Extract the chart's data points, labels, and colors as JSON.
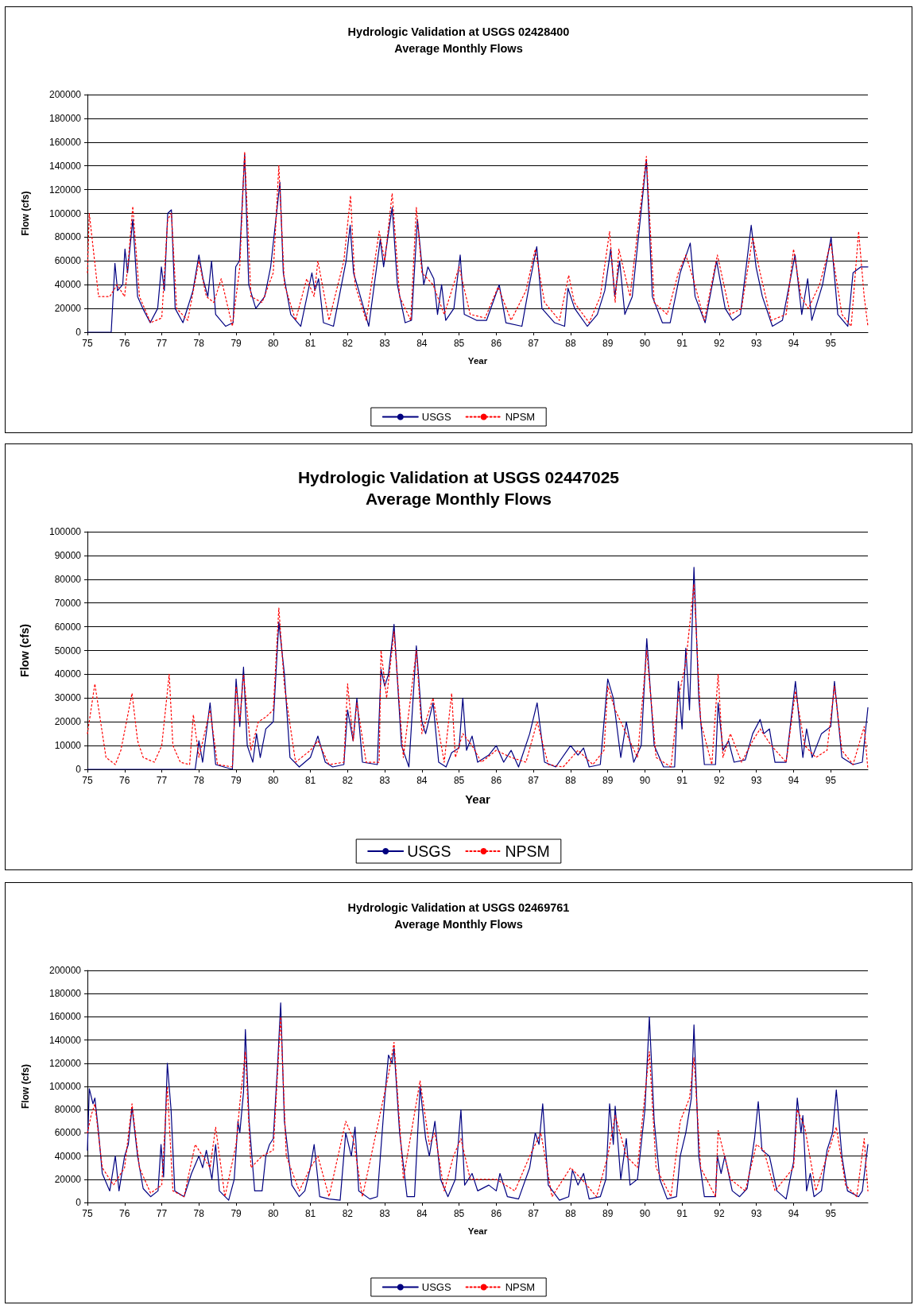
{
  "chart_data": [
    {
      "type": "line",
      "title": "Hydrologic Validation at USGS 02428400",
      "subtitle": "Average Monthly Flows",
      "xlabel": "Year",
      "ylabel": "Flow (cfs)",
      "xlim": [
        75,
        96
      ],
      "xticks": [
        75,
        76,
        77,
        78,
        79,
        80,
        81,
        82,
        83,
        84,
        85,
        86,
        87,
        88,
        89,
        90,
        91,
        92,
        93,
        94,
        95
      ],
      "ylim": [
        0,
        200000
      ],
      "yticks": [
        0,
        20000,
        40000,
        60000,
        80000,
        100000,
        120000,
        140000,
        160000,
        180000,
        200000
      ],
      "grid": "y",
      "legend": "bottom",
      "marker": "none",
      "series": [
        {
          "name": "USGS",
          "color": "#000080",
          "line_style": "solid",
          "x": [
            75,
            75.64,
            75.74,
            75.81,
            75.95,
            76.01,
            76.08,
            76.22,
            76.35,
            76.49,
            76.69,
            76.89,
            76.99,
            77.07,
            77.16,
            77.26,
            77.36,
            77.57,
            77.84,
            78.0,
            78.11,
            78.24,
            78.34,
            78.45,
            78.72,
            78.92,
            78.99,
            79.09,
            79.23,
            79.34,
            79.53,
            79.77,
            79.93,
            80.18,
            80.27,
            80.47,
            80.74,
            81.04,
            81.12,
            81.22,
            81.35,
            81.62,
            81.96,
            82.07,
            82.16,
            82.3,
            82.57,
            82.88,
            82.97,
            83.06,
            83.2,
            83.34,
            83.55,
            83.72,
            83.88,
            84.05,
            84.16,
            84.32,
            84.42,
            84.53,
            84.64,
            84.86,
            85.03,
            85.14,
            85.47,
            85.74,
            86.08,
            86.26,
            86.69,
            86.89,
            87.09,
            87.23,
            87.57,
            87.84,
            87.93,
            88.11,
            88.45,
            88.72,
            88.92,
            89.08,
            89.19,
            89.32,
            89.46,
            89.66,
            90.04,
            90.2,
            90.47,
            90.68,
            90.95,
            91.22,
            91.35,
            91.62,
            91.93,
            92.16,
            92.36,
            92.57,
            92.86,
            92.99,
            93.16,
            93.43,
            93.7,
            94.04,
            94.22,
            94.38,
            94.49,
            94.78,
            95.01,
            95.19,
            95.46,
            95.6,
            95.81,
            96
          ],
          "values": [
            0,
            0,
            58000,
            35000,
            40000,
            70000,
            50000,
            95000,
            30000,
            20000,
            8000,
            20000,
            55000,
            35000,
            100000,
            103000,
            20000,
            8000,
            35000,
            65000,
            45000,
            30000,
            60000,
            15000,
            5000,
            8000,
            55000,
            60000,
            150000,
            40000,
            20000,
            30000,
            55000,
            126000,
            50000,
            15000,
            5000,
            50000,
            35000,
            45000,
            8000,
            5000,
            60000,
            90000,
            50000,
            35000,
            5000,
            78000,
            55000,
            75000,
            105000,
            40000,
            8000,
            10000,
            95000,
            40000,
            55000,
            45000,
            15000,
            40000,
            10000,
            20000,
            65000,
            15000,
            10000,
            10000,
            40000,
            8000,
            5000,
            40000,
            72000,
            20000,
            8000,
            5000,
            37000,
            20000,
            5000,
            15000,
            35000,
            70000,
            30000,
            60000,
            15000,
            30000,
            145000,
            30000,
            8000,
            8000,
            50000,
            75000,
            30000,
            8000,
            60000,
            20000,
            10000,
            15000,
            90000,
            55000,
            30000,
            5000,
            10000,
            65000,
            15000,
            45000,
            10000,
            40000,
            80000,
            15000,
            5000,
            50000,
            55000,
            55000
          ]
        },
        {
          "name": "NPSM",
          "color": "#ff0000",
          "line_style": "dotted",
          "x": [
            75,
            75.05,
            75.3,
            75.6,
            75.8,
            76.0,
            76.1,
            76.22,
            76.4,
            76.7,
            77.0,
            77.16,
            77.26,
            77.4,
            77.7,
            78.0,
            78.2,
            78.4,
            78.6,
            78.9,
            79.1,
            79.23,
            79.4,
            79.7,
            80.0,
            80.15,
            80.3,
            80.6,
            80.9,
            81.1,
            81.2,
            81.5,
            81.9,
            82.08,
            82.2,
            82.5,
            82.85,
            83.0,
            83.2,
            83.4,
            83.7,
            83.85,
            84.0,
            84.3,
            84.6,
            85.0,
            85.3,
            85.7,
            86.05,
            86.4,
            86.8,
            87.05,
            87.3,
            87.7,
            87.95,
            88.1,
            88.5,
            88.8,
            89.05,
            89.2,
            89.3,
            89.6,
            90.04,
            90.25,
            90.6,
            90.9,
            91.1,
            91.3,
            91.6,
            91.95,
            92.3,
            92.6,
            92.9,
            93.1,
            93.4,
            93.8,
            94.0,
            94.2,
            94.4,
            94.7,
            95.0,
            95.3,
            95.55,
            95.75,
            95.9,
            96
          ],
          "values": [
            50000,
            100000,
            30000,
            30000,
            40000,
            30000,
            60000,
            106000,
            30000,
            8000,
            12000,
            95000,
            100000,
            20000,
            10000,
            60000,
            30000,
            25000,
            45000,
            5000,
            55000,
            152000,
            30000,
            25000,
            50000,
            140000,
            40000,
            10000,
            45000,
            30000,
            60000,
            10000,
            60000,
            115000,
            40000,
            10000,
            85000,
            60000,
            117000,
            30000,
            10000,
            105000,
            50000,
            40000,
            15000,
            55000,
            15000,
            12000,
            38000,
            10000,
            35000,
            70000,
            25000,
            10000,
            48000,
            25000,
            8000,
            30000,
            85000,
            25000,
            70000,
            30000,
            148000,
            25000,
            15000,
            50000,
            65000,
            45000,
            10000,
            65000,
            15000,
            20000,
            80000,
            50000,
            10000,
            15000,
            70000,
            30000,
            20000,
            40000,
            75000,
            15000,
            5000,
            85000,
            30000,
            5000
          ]
        }
      ]
    },
    {
      "type": "line",
      "title": "Hydrologic Validation at USGS 02447025",
      "subtitle": "Average Monthly Flows",
      "xlabel": "Year",
      "ylabel": "Flow (cfs)",
      "xlim": [
        75,
        96
      ],
      "xticks": [
        75,
        76,
        77,
        78,
        79,
        80,
        81,
        82,
        83,
        84,
        85,
        86,
        87,
        88,
        89,
        90,
        91,
        92,
        93,
        94,
        95
      ],
      "ylim": [
        0,
        100000
      ],
      "yticks": [
        0,
        10000,
        20000,
        30000,
        40000,
        50000,
        60000,
        70000,
        80000,
        90000,
        100000
      ],
      "grid": "y",
      "legend": "bottom",
      "marker": "none",
      "series": [
        {
          "name": "USGS",
          "color": "#000080",
          "line_style": "solid",
          "x": [
            75,
            77.9,
            78.0,
            78.1,
            78.3,
            78.45,
            78.9,
            79.0,
            79.1,
            79.2,
            79.3,
            79.45,
            79.55,
            79.65,
            79.8,
            80.0,
            80.15,
            80.3,
            80.45,
            80.7,
            81.0,
            81.2,
            81.4,
            81.6,
            81.9,
            82.0,
            82.15,
            82.25,
            82.4,
            82.8,
            82.9,
            83.0,
            83.1,
            83.25,
            83.45,
            83.65,
            83.85,
            84.0,
            84.1,
            84.3,
            84.45,
            84.65,
            84.8,
            85.0,
            85.1,
            85.2,
            85.35,
            85.5,
            85.8,
            86.0,
            86.2,
            86.4,
            86.6,
            86.9,
            87.1,
            87.3,
            87.6,
            88.0,
            88.2,
            88.35,
            88.5,
            88.8,
            89.0,
            89.15,
            89.35,
            89.5,
            89.7,
            89.9,
            90.05,
            90.25,
            90.5,
            90.8,
            90.9,
            91.0,
            91.1,
            91.2,
            91.32,
            91.45,
            91.6,
            91.9,
            91.97,
            92.1,
            92.25,
            92.4,
            92.7,
            92.9,
            93.1,
            93.2,
            93.35,
            93.5,
            93.8,
            94.05,
            94.25,
            94.35,
            94.5,
            94.75,
            95.0,
            95.1,
            95.3,
            95.6,
            95.85,
            96
          ],
          "values": [
            0,
            0,
            12000,
            3000,
            28000,
            2000,
            0,
            38000,
            18000,
            43000,
            10000,
            3000,
            15000,
            5000,
            17000,
            20000,
            62000,
            40000,
            5000,
            1000,
            5000,
            14000,
            3000,
            1000,
            2000,
            25000,
            12000,
            30000,
            3000,
            2000,
            42000,
            35000,
            40000,
            61000,
            10000,
            1000,
            52000,
            20000,
            15000,
            28000,
            3000,
            1000,
            7000,
            9000,
            30000,
            8000,
            14000,
            3000,
            6000,
            10000,
            3000,
            8000,
            1000,
            15000,
            28000,
            3000,
            1000,
            10000,
            6000,
            9000,
            1000,
            2000,
            38000,
            30000,
            5000,
            20000,
            3000,
            10000,
            55000,
            10000,
            1000,
            1000,
            37000,
            17000,
            51000,
            25000,
            85000,
            30000,
            2000,
            2000,
            28000,
            8000,
            12000,
            3000,
            4000,
            15000,
            21000,
            15000,
            17000,
            3000,
            3000,
            37000,
            5000,
            17000,
            5000,
            15000,
            18000,
            37000,
            5000,
            2000,
            3000,
            26000
          ]
        },
        {
          "name": "NPSM",
          "color": "#ff0000",
          "line_style": "dotted",
          "x": [
            75,
            75.2,
            75.5,
            75.75,
            75.9,
            76.2,
            76.35,
            76.5,
            76.8,
            77.0,
            77.2,
            77.3,
            77.5,
            77.75,
            77.85,
            78.0,
            78.3,
            78.5,
            78.9,
            79.0,
            79.1,
            79.2,
            79.4,
            79.6,
            79.8,
            80.0,
            80.15,
            80.3,
            80.6,
            81.0,
            81.2,
            81.5,
            81.9,
            82.0,
            82.15,
            82.25,
            82.5,
            82.85,
            82.9,
            83.05,
            83.25,
            83.5,
            83.85,
            84.0,
            84.3,
            84.6,
            84.8,
            84.9,
            85.1,
            85.35,
            85.6,
            86.0,
            86.4,
            86.8,
            87.1,
            87.4,
            87.8,
            88.2,
            88.6,
            88.9,
            89.0,
            89.2,
            89.5,
            89.8,
            90.05,
            90.3,
            90.7,
            90.9,
            91.1,
            91.32,
            91.5,
            91.8,
            91.97,
            92.1,
            92.3,
            92.6,
            92.9,
            93.1,
            93.4,
            93.8,
            94.05,
            94.3,
            94.6,
            94.9,
            95.1,
            95.3,
            95.6,
            95.9,
            96
          ],
          "values": [
            15000,
            36000,
            5000,
            2000,
            8000,
            32000,
            12000,
            5000,
            3000,
            10000,
            40000,
            10000,
            3000,
            2000,
            23000,
            5000,
            25000,
            2000,
            1000,
            35000,
            20000,
            40000,
            8000,
            20000,
            22000,
            25000,
            68000,
            35000,
            3000,
            8000,
            12000,
            2000,
            3000,
            36000,
            12000,
            28000,
            3000,
            3000,
            50000,
            30000,
            58000,
            5000,
            50000,
            15000,
            30000,
            3000,
            32000,
            5000,
            15000,
            10000,
            3000,
            8000,
            5000,
            3000,
            20000,
            2000,
            1000,
            8000,
            2000,
            8000,
            35000,
            25000,
            15000,
            5000,
            50000,
            5000,
            1000,
            30000,
            45000,
            78000,
            20000,
            2000,
            40000,
            5000,
            15000,
            3000,
            12000,
            17000,
            10000,
            3000,
            33000,
            10000,
            5000,
            8000,
            35000,
            8000,
            2000,
            18000,
            0
          ]
        }
      ]
    },
    {
      "type": "line",
      "title": "Hydrologic Validation at USGS 02469761",
      "subtitle": "Average Monthly Flows",
      "xlabel": "Year",
      "ylabel": "Flow (cfs)",
      "xlim": [
        75,
        96
      ],
      "xticks": [
        75,
        76,
        77,
        78,
        79,
        80,
        81,
        82,
        83,
        84,
        85,
        86,
        87,
        88,
        89,
        90,
        91,
        92,
        93,
        94,
        95
      ],
      "ylim": [
        0,
        200000
      ],
      "yticks": [
        0,
        20000,
        40000,
        60000,
        80000,
        100000,
        120000,
        140000,
        160000,
        180000,
        200000
      ],
      "grid": "y",
      "legend": "bottom",
      "marker": "none",
      "series": [
        {
          "name": "USGS",
          "color": "#000080",
          "line_style": "solid",
          "x": [
            75,
            75.05,
            75.15,
            75.2,
            75.3,
            75.4,
            75.6,
            75.75,
            75.85,
            76.0,
            76.1,
            76.2,
            76.35,
            76.5,
            76.7,
            76.9,
            76.98,
            77.05,
            77.15,
            77.25,
            77.35,
            77.6,
            77.8,
            78.0,
            78.1,
            78.2,
            78.35,
            78.45,
            78.55,
            78.8,
            78.95,
            79.05,
            79.1,
            79.2,
            79.25,
            79.35,
            79.5,
            79.7,
            79.8,
            79.9,
            80.0,
            80.12,
            80.2,
            80.3,
            80.5,
            80.7,
            80.85,
            81.0,
            81.1,
            81.25,
            81.5,
            81.8,
            81.95,
            82.1,
            82.2,
            82.3,
            82.6,
            82.8,
            83.0,
            83.1,
            83.2,
            83.25,
            83.4,
            83.6,
            83.8,
            83.95,
            84.1,
            84.2,
            84.35,
            84.5,
            84.7,
            84.9,
            85.05,
            85.15,
            85.35,
            85.5,
            85.8,
            86.0,
            86.1,
            86.3,
            86.6,
            86.9,
            87.05,
            87.15,
            87.25,
            87.4,
            87.7,
            87.95,
            88.05,
            88.2,
            88.35,
            88.5,
            88.8,
            88.95,
            89.05,
            89.15,
            89.2,
            89.35,
            89.5,
            89.6,
            89.8,
            90.0,
            90.12,
            90.25,
            90.4,
            90.6,
            90.85,
            90.95,
            91.1,
            91.25,
            91.32,
            91.45,
            91.6,
            91.9,
            91.95,
            92.05,
            92.15,
            92.35,
            92.55,
            92.75,
            92.95,
            93.05,
            93.15,
            93.35,
            93.55,
            93.8,
            94.0,
            94.1,
            94.2,
            94.25,
            94.35,
            94.45,
            94.55,
            94.75,
            94.9,
            95.05,
            95.15,
            95.3,
            95.45,
            95.75,
            95.85,
            96
          ],
          "values": [
            45000,
            98000,
            85000,
            90000,
            60000,
            25000,
            10000,
            40000,
            10000,
            40000,
            50000,
            82000,
            40000,
            12000,
            5000,
            10000,
            50000,
            22000,
            120000,
            80000,
            10000,
            5000,
            25000,
            40000,
            30000,
            45000,
            20000,
            50000,
            10000,
            2000,
            20000,
            70000,
            60000,
            95000,
            149000,
            70000,
            10000,
            10000,
            40000,
            50000,
            55000,
            120000,
            172000,
            70000,
            15000,
            5000,
            10000,
            30000,
            50000,
            5000,
            3000,
            2000,
            60000,
            40000,
            65000,
            10000,
            3000,
            5000,
            90000,
            127000,
            120000,
            133000,
            60000,
            5000,
            5000,
            100000,
            55000,
            40000,
            70000,
            20000,
            5000,
            20000,
            80000,
            15000,
            25000,
            10000,
            15000,
            10000,
            25000,
            5000,
            3000,
            30000,
            60000,
            50000,
            85000,
            15000,
            2000,
            5000,
            28000,
            15000,
            25000,
            3000,
            5000,
            20000,
            85000,
            50000,
            83000,
            20000,
            55000,
            15000,
            20000,
            80000,
            160000,
            70000,
            20000,
            3000,
            5000,
            40000,
            60000,
            90000,
            153000,
            40000,
            5000,
            5000,
            40000,
            25000,
            40000,
            10000,
            5000,
            12000,
            55000,
            87000,
            45000,
            40000,
            10000,
            3000,
            35000,
            90000,
            60000,
            75000,
            10000,
            25000,
            5000,
            10000,
            45000,
            60000,
            97000,
            40000,
            10000,
            5000,
            10000,
            50000
          ]
        },
        {
          "name": "NPSM",
          "color": "#ff0000",
          "line_style": "dotted",
          "x": [
            75,
            75.1,
            75.2,
            75.4,
            75.7,
            76.0,
            76.2,
            76.4,
            76.7,
            77.0,
            77.15,
            77.3,
            77.6,
            77.9,
            78.1,
            78.3,
            78.45,
            78.7,
            79.0,
            79.1,
            79.25,
            79.4,
            79.7,
            80.0,
            80.2,
            80.35,
            80.7,
            81.0,
            81.2,
            81.5,
            81.95,
            82.15,
            82.4,
            82.9,
            83.1,
            83.25,
            83.5,
            83.95,
            84.2,
            84.35,
            84.6,
            84.85,
            85.05,
            85.3,
            85.7,
            86.0,
            86.5,
            86.9,
            87.2,
            87.5,
            88.0,
            88.3,
            88.7,
            89.0,
            89.2,
            89.5,
            89.8,
            90.12,
            90.3,
            90.7,
            90.95,
            91.2,
            91.32,
            91.5,
            91.9,
            91.97,
            92.3,
            92.7,
            93.0,
            93.2,
            93.5,
            94.0,
            94.1,
            94.3,
            94.6,
            94.9,
            95.15,
            95.4,
            95.7,
            95.9,
            96
          ],
          "values": [
            60000,
            75000,
            85000,
            30000,
            15000,
            30000,
            85000,
            30000,
            8000,
            15000,
            100000,
            10000,
            5000,
            50000,
            40000,
            30000,
            65000,
            5000,
            50000,
            85000,
            130000,
            30000,
            40000,
            45000,
            160000,
            40000,
            10000,
            30000,
            40000,
            5000,
            70000,
            55000,
            5000,
            80000,
            110000,
            138000,
            20000,
            105000,
            50000,
            60000,
            10000,
            40000,
            55000,
            20000,
            20000,
            20000,
            10000,
            40000,
            60000,
            5000,
            30000,
            20000,
            5000,
            40000,
            75000,
            40000,
            30000,
            130000,
            30000,
            5000,
            70000,
            90000,
            125000,
            30000,
            5000,
            62000,
            20000,
            10000,
            50000,
            45000,
            10000,
            30000,
            80000,
            65000,
            10000,
            40000,
            65000,
            15000,
            5000,
            55000,
            10000
          ]
        }
      ]
    }
  ]
}
